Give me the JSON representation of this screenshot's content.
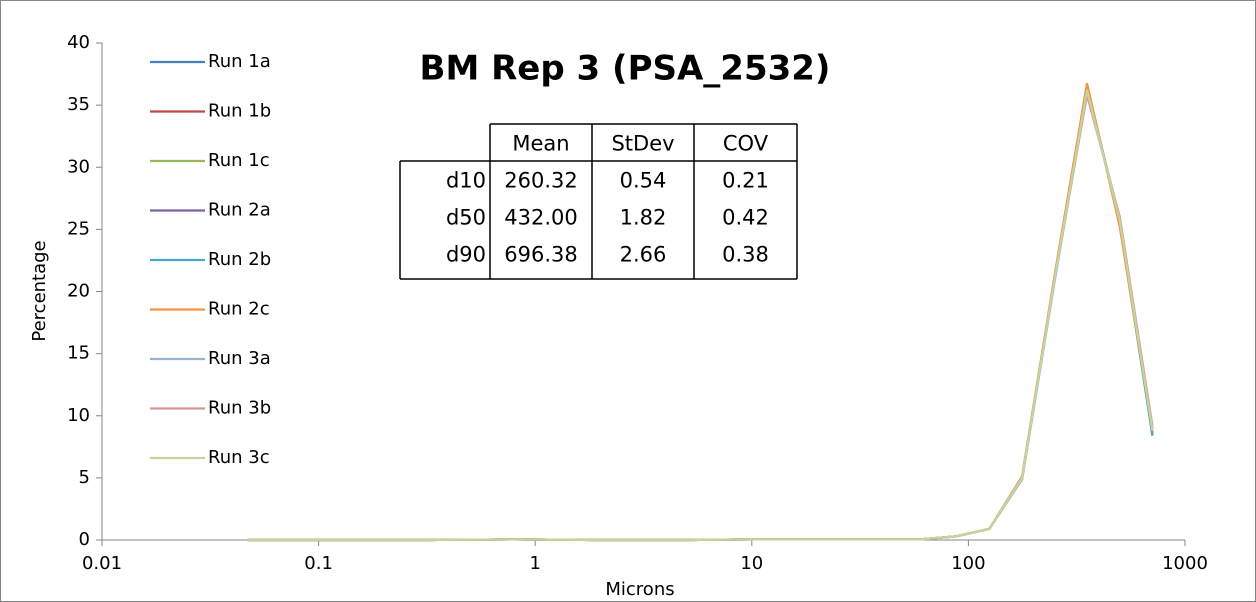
{
  "chart_data": {
    "type": "line",
    "title": "BM Rep 3 (PSA_2532)",
    "x_label": "Microns",
    "y_label": "Percentage",
    "xscale": "log",
    "x": [
      0.047,
      0.1,
      0.3,
      0.8,
      2,
      5,
      10,
      20,
      40,
      60,
      88,
      125,
      177,
      250,
      353,
      500,
      707
    ],
    "series": [
      {
        "name": "Run 1a",
        "color": "#4a7ebb",
        "values": [
          0,
          0,
          0,
          0.05,
          0,
          0,
          0.05,
          0.05,
          0.05,
          0.05,
          0.3,
          0.9,
          5.0,
          21.0,
          36.4,
          25.6,
          8.4
        ]
      },
      {
        "name": "Run 1b",
        "color": "#be4b48",
        "values": [
          0,
          0,
          0,
          0.05,
          0,
          0,
          0.05,
          0.05,
          0.05,
          0.05,
          0.3,
          0.9,
          5.1,
          21.2,
          36.7,
          25.3,
          8.6
        ]
      },
      {
        "name": "Run 1c",
        "color": "#98b954",
        "values": [
          0,
          0,
          0,
          0.05,
          0,
          0,
          0.05,
          0.05,
          0.05,
          0.05,
          0.3,
          0.9,
          5.0,
          21.1,
          36.5,
          25.5,
          8.7
        ]
      },
      {
        "name": "Run 2a",
        "color": "#7d60a0",
        "values": [
          0,
          0,
          0,
          0.05,
          0,
          0,
          0.05,
          0.05,
          0.05,
          0.05,
          0.3,
          0.9,
          4.9,
          20.9,
          36.3,
          25.8,
          8.8
        ]
      },
      {
        "name": "Run 2b",
        "color": "#46aac5",
        "values": [
          0,
          0,
          0,
          0.05,
          0,
          0,
          0.05,
          0.05,
          0.05,
          0.05,
          0.3,
          0.9,
          5.0,
          21.0,
          36.6,
          25.4,
          8.5
        ]
      },
      {
        "name": "Run 2c",
        "color": "#f69240",
        "values": [
          0,
          0,
          0,
          0.05,
          0,
          0,
          0.05,
          0.05,
          0.05,
          0.05,
          0.3,
          0.9,
          5.1,
          21.3,
          36.7,
          25.2,
          8.9
        ]
      },
      {
        "name": "Run 3a",
        "color": "#95b3d7",
        "values": [
          0,
          0,
          0,
          0.05,
          0,
          0,
          0.05,
          0.05,
          0.05,
          0.05,
          0.3,
          0.9,
          4.9,
          20.8,
          36.0,
          25.9,
          9.0
        ]
      },
      {
        "name": "Run 3b",
        "color": "#d99694",
        "values": [
          0,
          0,
          0,
          0.05,
          0,
          0,
          0.05,
          0.05,
          0.05,
          0.05,
          0.3,
          0.9,
          5.0,
          21.1,
          35.8,
          26.0,
          9.2
        ]
      },
      {
        "name": "Run 3c",
        "color": "#c3d69b",
        "values": [
          0,
          0,
          0,
          0.05,
          0,
          0,
          0.05,
          0.05,
          0.05,
          0.05,
          0.3,
          0.9,
          5.0,
          21.0,
          36.2,
          25.7,
          8.8
        ]
      }
    ],
    "xlim": [
      0.01,
      1000
    ],
    "xticks": [
      0.01,
      0.1,
      1,
      10,
      100,
      1000
    ],
    "ylim": [
      0,
      40
    ],
    "yticks": [
      0,
      5,
      10,
      15,
      20,
      25,
      30,
      35,
      40
    ],
    "legend": "upper left",
    "table": {
      "columns": [
        "Mean",
        "StDev",
        "COV"
      ],
      "rows": [
        {
          "label": "d10",
          "values": [
            "260.32",
            "0.54",
            "0.21"
          ]
        },
        {
          "label": "d50",
          "values": [
            "432.00",
            "1.82",
            "0.42"
          ]
        },
        {
          "label": "d90",
          "values": [
            "696.38",
            "2.66",
            "0.38"
          ]
        }
      ]
    }
  }
}
